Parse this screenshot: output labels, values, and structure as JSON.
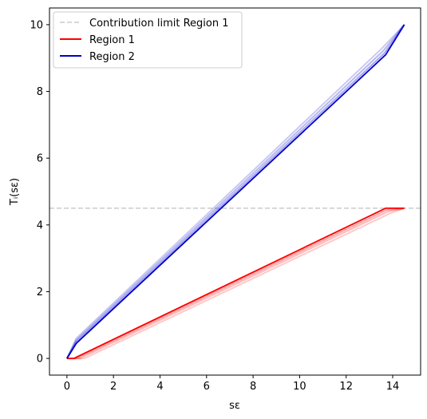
{
  "chart_data": {
    "type": "line",
    "xlabel": "sε",
    "ylabel": "Tᵢ(sε)",
    "xlim": [
      -0.75,
      15.2
    ],
    "ylim": [
      -0.5,
      10.5
    ],
    "x_ticks": [
      0,
      2,
      4,
      6,
      8,
      10,
      12,
      14
    ],
    "y_ticks": [
      0,
      2,
      4,
      6,
      8,
      10
    ],
    "grid": false,
    "legend_position": "top-left",
    "colors": {
      "limit": "#cccccc",
      "region1": "#ff0000",
      "region2": "#0000cc"
    },
    "hline": {
      "name": "Contribution limit Region 1",
      "y": 4.5,
      "style": "dashed"
    },
    "series": [
      {
        "name": "Region 1",
        "x": [
          0,
          0.3,
          13.7,
          14.5
        ],
        "y": [
          0,
          0,
          4.5,
          4.5
        ]
      },
      {
        "name": "Region 2",
        "x": [
          0,
          0.4,
          13.7,
          14.5
        ],
        "y": [
          0,
          0.45,
          9.1,
          10.0
        ]
      }
    ],
    "shaded_variants": {
      "Region 1": [
        {
          "x": [
            0,
            0.4,
            13.75,
            14.5
          ],
          "y": [
            0,
            0,
            4.45,
            4.5
          ]
        },
        {
          "x": [
            0,
            0.55,
            13.8,
            14.5
          ],
          "y": [
            0,
            0,
            4.4,
            4.5
          ]
        },
        {
          "x": [
            0,
            0.75,
            13.9,
            14.5
          ],
          "y": [
            0,
            0,
            4.35,
            4.5
          ]
        }
      ],
      "Region 2": [
        {
          "x": [
            0,
            0.4,
            13.65,
            14.5
          ],
          "y": [
            0,
            0.5,
            9.15,
            10.0
          ]
        },
        {
          "x": [
            0,
            0.4,
            13.6,
            14.5
          ],
          "y": [
            0,
            0.55,
            9.22,
            10.0
          ]
        },
        {
          "x": [
            0,
            0.4,
            13.55,
            14.5
          ],
          "y": [
            0,
            0.6,
            9.3,
            10.0
          ]
        }
      ]
    },
    "legend": [
      "Contribution limit Region 1",
      "Region 1",
      "Region 2"
    ]
  }
}
